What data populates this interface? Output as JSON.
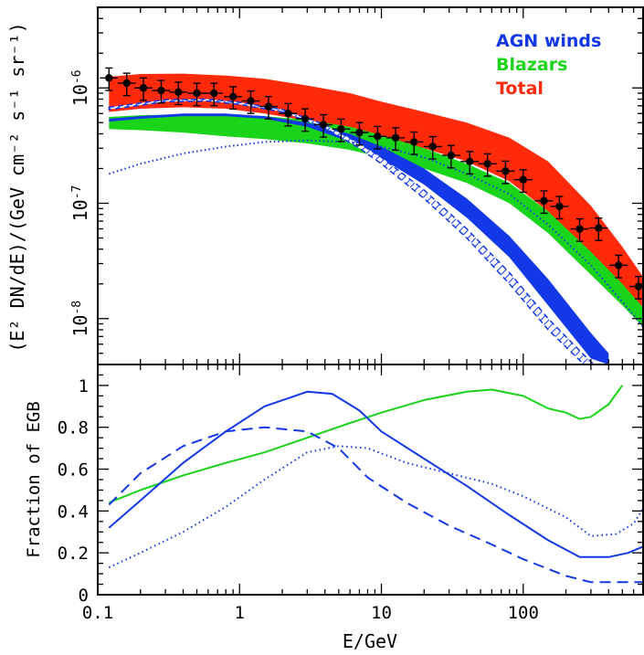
{
  "colors": {
    "agn": "#1238e8",
    "blazar": "#19d419",
    "total": "#ff2a0a",
    "data": "#000000"
  },
  "chart_data": [
    {
      "type": "area",
      "panel": "top",
      "ylabel": "(E² DN/dE)/(GeV cm⁻² s⁻¹ sr⁻¹)",
      "xlabel": "",
      "xscale": "log",
      "yscale": "log",
      "xlim": [
        0.1,
        700
      ],
      "ylim": [
        4e-09,
        5e-06
      ],
      "x_ticks": [
        {
          "value": 0.1,
          "label": ""
        },
        {
          "value": 1,
          "label": ""
        },
        {
          "value": 10,
          "label": ""
        },
        {
          "value": 100,
          "label": ""
        }
      ],
      "y_ticks": [
        {
          "value": 1e-08,
          "base": "10",
          "exp": "-8"
        },
        {
          "value": 1e-07,
          "base": "10",
          "exp": "-7"
        },
        {
          "value": 1e-06,
          "base": "10",
          "exp": "-6"
        }
      ],
      "legend": {
        "position": "top-right",
        "entries": [
          {
            "label": "AGN winds",
            "color": "#1238e8"
          },
          {
            "label": "Blazars",
            "color": "#19d419"
          },
          {
            "label": "Total",
            "color": "#ff2a0a"
          }
        ]
      },
      "series": [
        {
          "name": "Total",
          "kind": "band",
          "color": "#ff2a0a",
          "x": [
            0.12,
            0.2,
            0.4,
            0.8,
            1.5,
            3,
            6,
            10,
            20,
            40,
            80,
            150,
            300,
            500,
            700
          ],
          "lower": [
            6.2e-07,
            6.6e-07,
            6.8e-07,
            6.6e-07,
            6e-07,
            5.2e-07,
            4.2e-07,
            3.6e-07,
            3e-07,
            2.3e-07,
            1.55e-07,
            8.5e-08,
            3.5e-08,
            1.5e-08,
            9e-09
          ],
          "upper": [
            1.25e-06,
            1.32e-06,
            1.33e-06,
            1.28e-06,
            1.2e-06,
            1.05e-06,
            9e-07,
            7.6e-07,
            6.2e-07,
            5e-07,
            3.7e-07,
            2.3e-07,
            9.5e-08,
            4.2e-08,
            2.3e-08
          ]
        },
        {
          "name": "Blazars",
          "kind": "band",
          "color": "#19d419",
          "x": [
            0.12,
            0.2,
            0.4,
            0.8,
            1.5,
            3,
            6,
            10,
            20,
            40,
            80,
            150,
            300,
            500,
            700
          ],
          "lower": [
            4.4e-07,
            4.3e-07,
            4.1e-07,
            3.8e-07,
            3.6e-07,
            3.3e-07,
            2.9e-07,
            2.5e-07,
            2e-07,
            1.5e-07,
            1e-07,
            5.5e-08,
            2.4e-08,
            1.3e-08,
            8.5e-09
          ],
          "upper": [
            5.6e-07,
            5.8e-07,
            5.9e-07,
            5.9e-07,
            5.7e-07,
            5.3e-07,
            4.6e-07,
            3.9e-07,
            3e-07,
            2.2e-07,
            1.5e-07,
            8.5e-08,
            3.8e-08,
            2e-08,
            1.25e-08
          ]
        },
        {
          "name": "AGN winds",
          "kind": "band",
          "color": "#1238e8",
          "x": [
            0.12,
            0.2,
            0.4,
            0.8,
            1.5,
            3,
            6,
            10,
            20,
            40,
            80,
            150,
            300,
            400
          ],
          "lower": [
            5.1e-07,
            5.4e-07,
            5.7e-07,
            5.7e-07,
            5.4e-07,
            4.6e-07,
            3.4e-07,
            2.45e-07,
            1.45e-07,
            7.5e-08,
            3.4e-08,
            1.3e-08,
            4.5e-09,
            4e-09
          ],
          "upper": [
            5.4e-07,
            5.7e-07,
            6e-07,
            6e-07,
            5.7e-07,
            5e-07,
            4e-07,
            3.1e-07,
            2e-07,
            1.1e-07,
            5.2e-08,
            2.2e-08,
            7.5e-09,
            5e-09
          ]
        },
        {
          "name": "AGN winds (dashed)",
          "kind": "hatched-band",
          "color": "#1238e8",
          "x": [
            0.12,
            0.3,
            0.6,
            1,
            2,
            4,
            7,
            10,
            20,
            40,
            80,
            150,
            300,
            400
          ],
          "lower": [
            6.5e-07,
            7.6e-07,
            7.7e-07,
            7.2e-07,
            6.2e-07,
            4.5e-07,
            3e-07,
            2.2e-07,
            1.1e-07,
            5e-08,
            2e-08,
            8e-09,
            3.5e-09,
            3e-09
          ],
          "upper": [
            6.8e-07,
            7.9e-07,
            8e-07,
            7.5e-07,
            6.5e-07,
            4.8e-07,
            3.3e-07,
            2.5e-07,
            1.3e-07,
            6e-08,
            2.5e-08,
            1e-08,
            4.2e-09,
            3.5e-09
          ]
        },
        {
          "name": "AGN winds (dotted)",
          "kind": "dotted-line",
          "color": "#1238e8",
          "x": [
            0.12,
            0.2,
            0.4,
            0.8,
            1.5,
            3,
            6,
            10,
            20,
            40,
            80,
            150,
            300,
            500,
            700
          ],
          "y": [
            1.8e-07,
            2.2e-07,
            2.7e-07,
            3.1e-07,
            3.4e-07,
            3.5e-07,
            3.4e-07,
            3.1e-07,
            2.5e-07,
            1.8e-07,
            1.2e-07,
            6.5e-08,
            2.9e-08,
            1.4e-08,
            8.5e-09
          ]
        },
        {
          "name": "Data",
          "kind": "points",
          "color": "#000000",
          "x": [
            0.12,
            0.16,
            0.21,
            0.28,
            0.37,
            0.5,
            0.66,
            0.9,
            1.2,
            1.6,
            2.2,
            2.9,
            3.9,
            5.2,
            7.0,
            9.4,
            12.6,
            17,
            23,
            31,
            42,
            56,
            75,
            100,
            140,
            180,
            250,
            340,
            470,
            650
          ],
          "y": [
            1.22e-06,
            1.1e-06,
            1e-06,
            9.5e-07,
            9.2e-07,
            9e-07,
            9e-07,
            8.4e-07,
            7.7e-07,
            6.9e-07,
            6e-07,
            5.4e-07,
            4.8e-07,
            4.4e-07,
            4.1e-07,
            3.8e-07,
            3.7e-07,
            3.4e-07,
            3.1e-07,
            2.6e-07,
            2.3e-07,
            2.2e-07,
            1.9e-07,
            1.6e-07,
            1.05e-07,
            9.4e-08,
            6e-08,
            6.1e-08,
            2.9e-08,
            1.9e-08
          ],
          "yerr_frac": 0.22
        }
      ]
    },
    {
      "type": "line",
      "panel": "bottom",
      "xlabel": "E/GeV",
      "ylabel": "Fraction of EGB",
      "xscale": "log",
      "xlim": [
        0.1,
        700
      ],
      "ylim": [
        0,
        1.1
      ],
      "x_ticks": [
        {
          "value": 0.1,
          "label": "0.1"
        },
        {
          "value": 1,
          "label": "1"
        },
        {
          "value": 10,
          "label": "10"
        },
        {
          "value": 100,
          "label": "100"
        }
      ],
      "y_ticks": [
        {
          "value": 0,
          "label": "0"
        },
        {
          "value": 0.2,
          "label": "0.2"
        },
        {
          "value": 0.4,
          "label": "0.4"
        },
        {
          "value": 0.6,
          "label": "0.6"
        },
        {
          "value": 0.8,
          "label": "0.8"
        },
        {
          "value": 1,
          "label": "1"
        }
      ],
      "series": [
        {
          "name": "Blazars",
          "style": "solid",
          "color": "#19d419",
          "x": [
            0.12,
            0.2,
            0.4,
            0.8,
            1.5,
            3,
            6,
            10,
            20,
            40,
            60,
            100,
            150,
            200,
            250,
            300,
            400,
            500
          ],
          "y": [
            0.44,
            0.5,
            0.57,
            0.63,
            0.68,
            0.75,
            0.82,
            0.87,
            0.93,
            0.97,
            0.98,
            0.95,
            0.89,
            0.87,
            0.84,
            0.85,
            0.91,
            1.0
          ]
        },
        {
          "name": "AGN winds (solid)",
          "style": "solid",
          "color": "#1238e8",
          "x": [
            0.12,
            0.2,
            0.4,
            0.8,
            1.5,
            3,
            4.5,
            7,
            10,
            20,
            40,
            80,
            150,
            250,
            400,
            550,
            700
          ],
          "y": [
            0.32,
            0.45,
            0.63,
            0.78,
            0.9,
            0.97,
            0.96,
            0.88,
            0.78,
            0.65,
            0.52,
            0.38,
            0.26,
            0.18,
            0.18,
            0.2,
            0.23
          ]
        },
        {
          "name": "AGN winds (dashed)",
          "style": "dashed",
          "color": "#1238e8",
          "x": [
            0.12,
            0.2,
            0.4,
            0.8,
            1.5,
            3,
            5,
            8,
            15,
            30,
            60,
            100,
            200,
            300,
            500,
            700
          ],
          "y": [
            0.43,
            0.58,
            0.71,
            0.78,
            0.8,
            0.78,
            0.7,
            0.56,
            0.44,
            0.33,
            0.24,
            0.17,
            0.09,
            0.06,
            0.06,
            0.06
          ]
        },
        {
          "name": "AGN winds (dotted)",
          "style": "dotted",
          "color": "#1238e8",
          "x": [
            0.12,
            0.2,
            0.4,
            0.8,
            1.5,
            3,
            5,
            8,
            15,
            30,
            60,
            100,
            200,
            300,
            450,
            600,
            700
          ],
          "y": [
            0.13,
            0.2,
            0.3,
            0.42,
            0.55,
            0.68,
            0.71,
            0.7,
            0.63,
            0.58,
            0.53,
            0.47,
            0.37,
            0.28,
            0.29,
            0.34,
            0.41
          ]
        }
      ]
    }
  ]
}
